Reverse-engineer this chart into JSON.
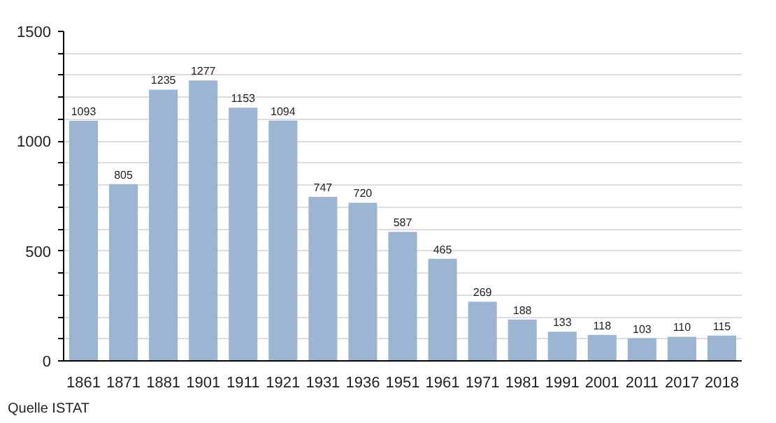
{
  "chart_data": {
    "type": "bar",
    "categories": [
      "1861",
      "1871",
      "1881",
      "1901",
      "1911",
      "1921",
      "1931",
      "1936",
      "1951",
      "1961",
      "1971",
      "1981",
      "1991",
      "2001",
      "2011",
      "2017",
      "2018"
    ],
    "values": [
      1093,
      805,
      1235,
      1277,
      1153,
      1094,
      747,
      720,
      587,
      465,
      269,
      188,
      133,
      118,
      103,
      110,
      115
    ],
    "color": "#9bb5d2",
    "ylim": [
      0,
      1500
    ],
    "yticks": [
      0,
      {
        "value": 100,
        "label": null
      },
      {
        "value": 200,
        "label": null
      },
      {
        "value": 300,
        "label": null
      },
      {
        "value": 400,
        "label": null
      },
      500,
      {
        "value": 600,
        "label": null
      },
      {
        "value": 700,
        "label": null
      },
      {
        "value": 800,
        "label": null
      },
      {
        "value": 900,
        "label": null
      },
      1000,
      {
        "value": 1100,
        "label": null
      },
      {
        "value": 1200,
        "label": null
      },
      {
        "value": 1300,
        "label": null
      },
      {
        "value": 1400,
        "label": null
      },
      1500
    ],
    "grid": "y",
    "data_labels": true,
    "annotations": [
      "Quelle ISTAT"
    ]
  }
}
